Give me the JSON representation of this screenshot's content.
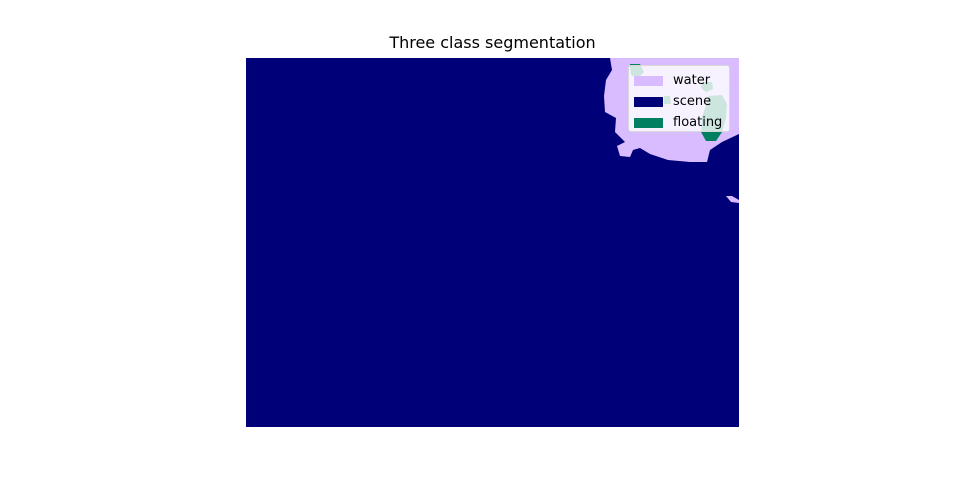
{
  "chart_data": {
    "type": "heatmap",
    "title": "Three class segmentation",
    "legend_placement": "top-right",
    "grid": false,
    "classes": [
      {
        "name": "water",
        "color": "#d8bcff"
      },
      {
        "name": "scene",
        "color": "#000078"
      },
      {
        "name": "floating",
        "color": "#008060"
      }
    ]
  }
}
